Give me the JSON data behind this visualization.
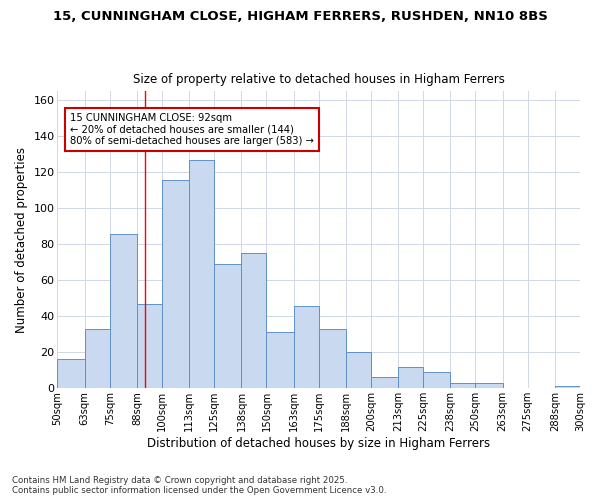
{
  "title_line1": "15, CUNNINGHAM CLOSE, HIGHAM FERRERS, RUSHDEN, NN10 8BS",
  "title_line2": "Size of property relative to detached houses in Higham Ferrers",
  "xlabel": "Distribution of detached houses by size in Higham Ferrers",
  "ylabel": "Number of detached properties",
  "bin_labels": [
    "50sqm",
    "63sqm",
    "75sqm",
    "88sqm",
    "100sqm",
    "113sqm",
    "125sqm",
    "138sqm",
    "150sqm",
    "163sqm",
    "175sqm",
    "188sqm",
    "200sqm",
    "213sqm",
    "225sqm",
    "238sqm",
    "250sqm",
    "263sqm",
    "275sqm",
    "288sqm",
    "300sqm"
  ],
  "bin_edges": [
    50,
    63,
    75,
    88,
    100,
    113,
    125,
    138,
    150,
    163,
    175,
    188,
    200,
    213,
    225,
    238,
    250,
    263,
    275,
    288,
    300
  ],
  "values": [
    16,
    33,
    86,
    47,
    116,
    127,
    69,
    75,
    31,
    46,
    33,
    20,
    6,
    12,
    9,
    3,
    3,
    0,
    0,
    1,
    1
  ],
  "bar_color": "#c9d9f0",
  "bar_edge_color": "#6090c8",
  "grid_color": "#d0d8e8",
  "background_color": "#ffffff",
  "red_line_x": 92,
  "annotation_line1": "15 CUNNINGHAM CLOSE: 92sqm",
  "annotation_line2": "← 20% of detached houses are smaller (144)",
  "annotation_line3": "80% of semi-detached houses are larger (583) →",
  "annotation_box_color": "#ffffff",
  "annotation_box_edge": "#cc0000",
  "ylim": [
    0,
    165
  ],
  "yticks": [
    0,
    20,
    40,
    60,
    80,
    100,
    120,
    140,
    160
  ],
  "footnote": "Contains HM Land Registry data © Crown copyright and database right 2025.\nContains public sector information licensed under the Open Government Licence v3.0."
}
